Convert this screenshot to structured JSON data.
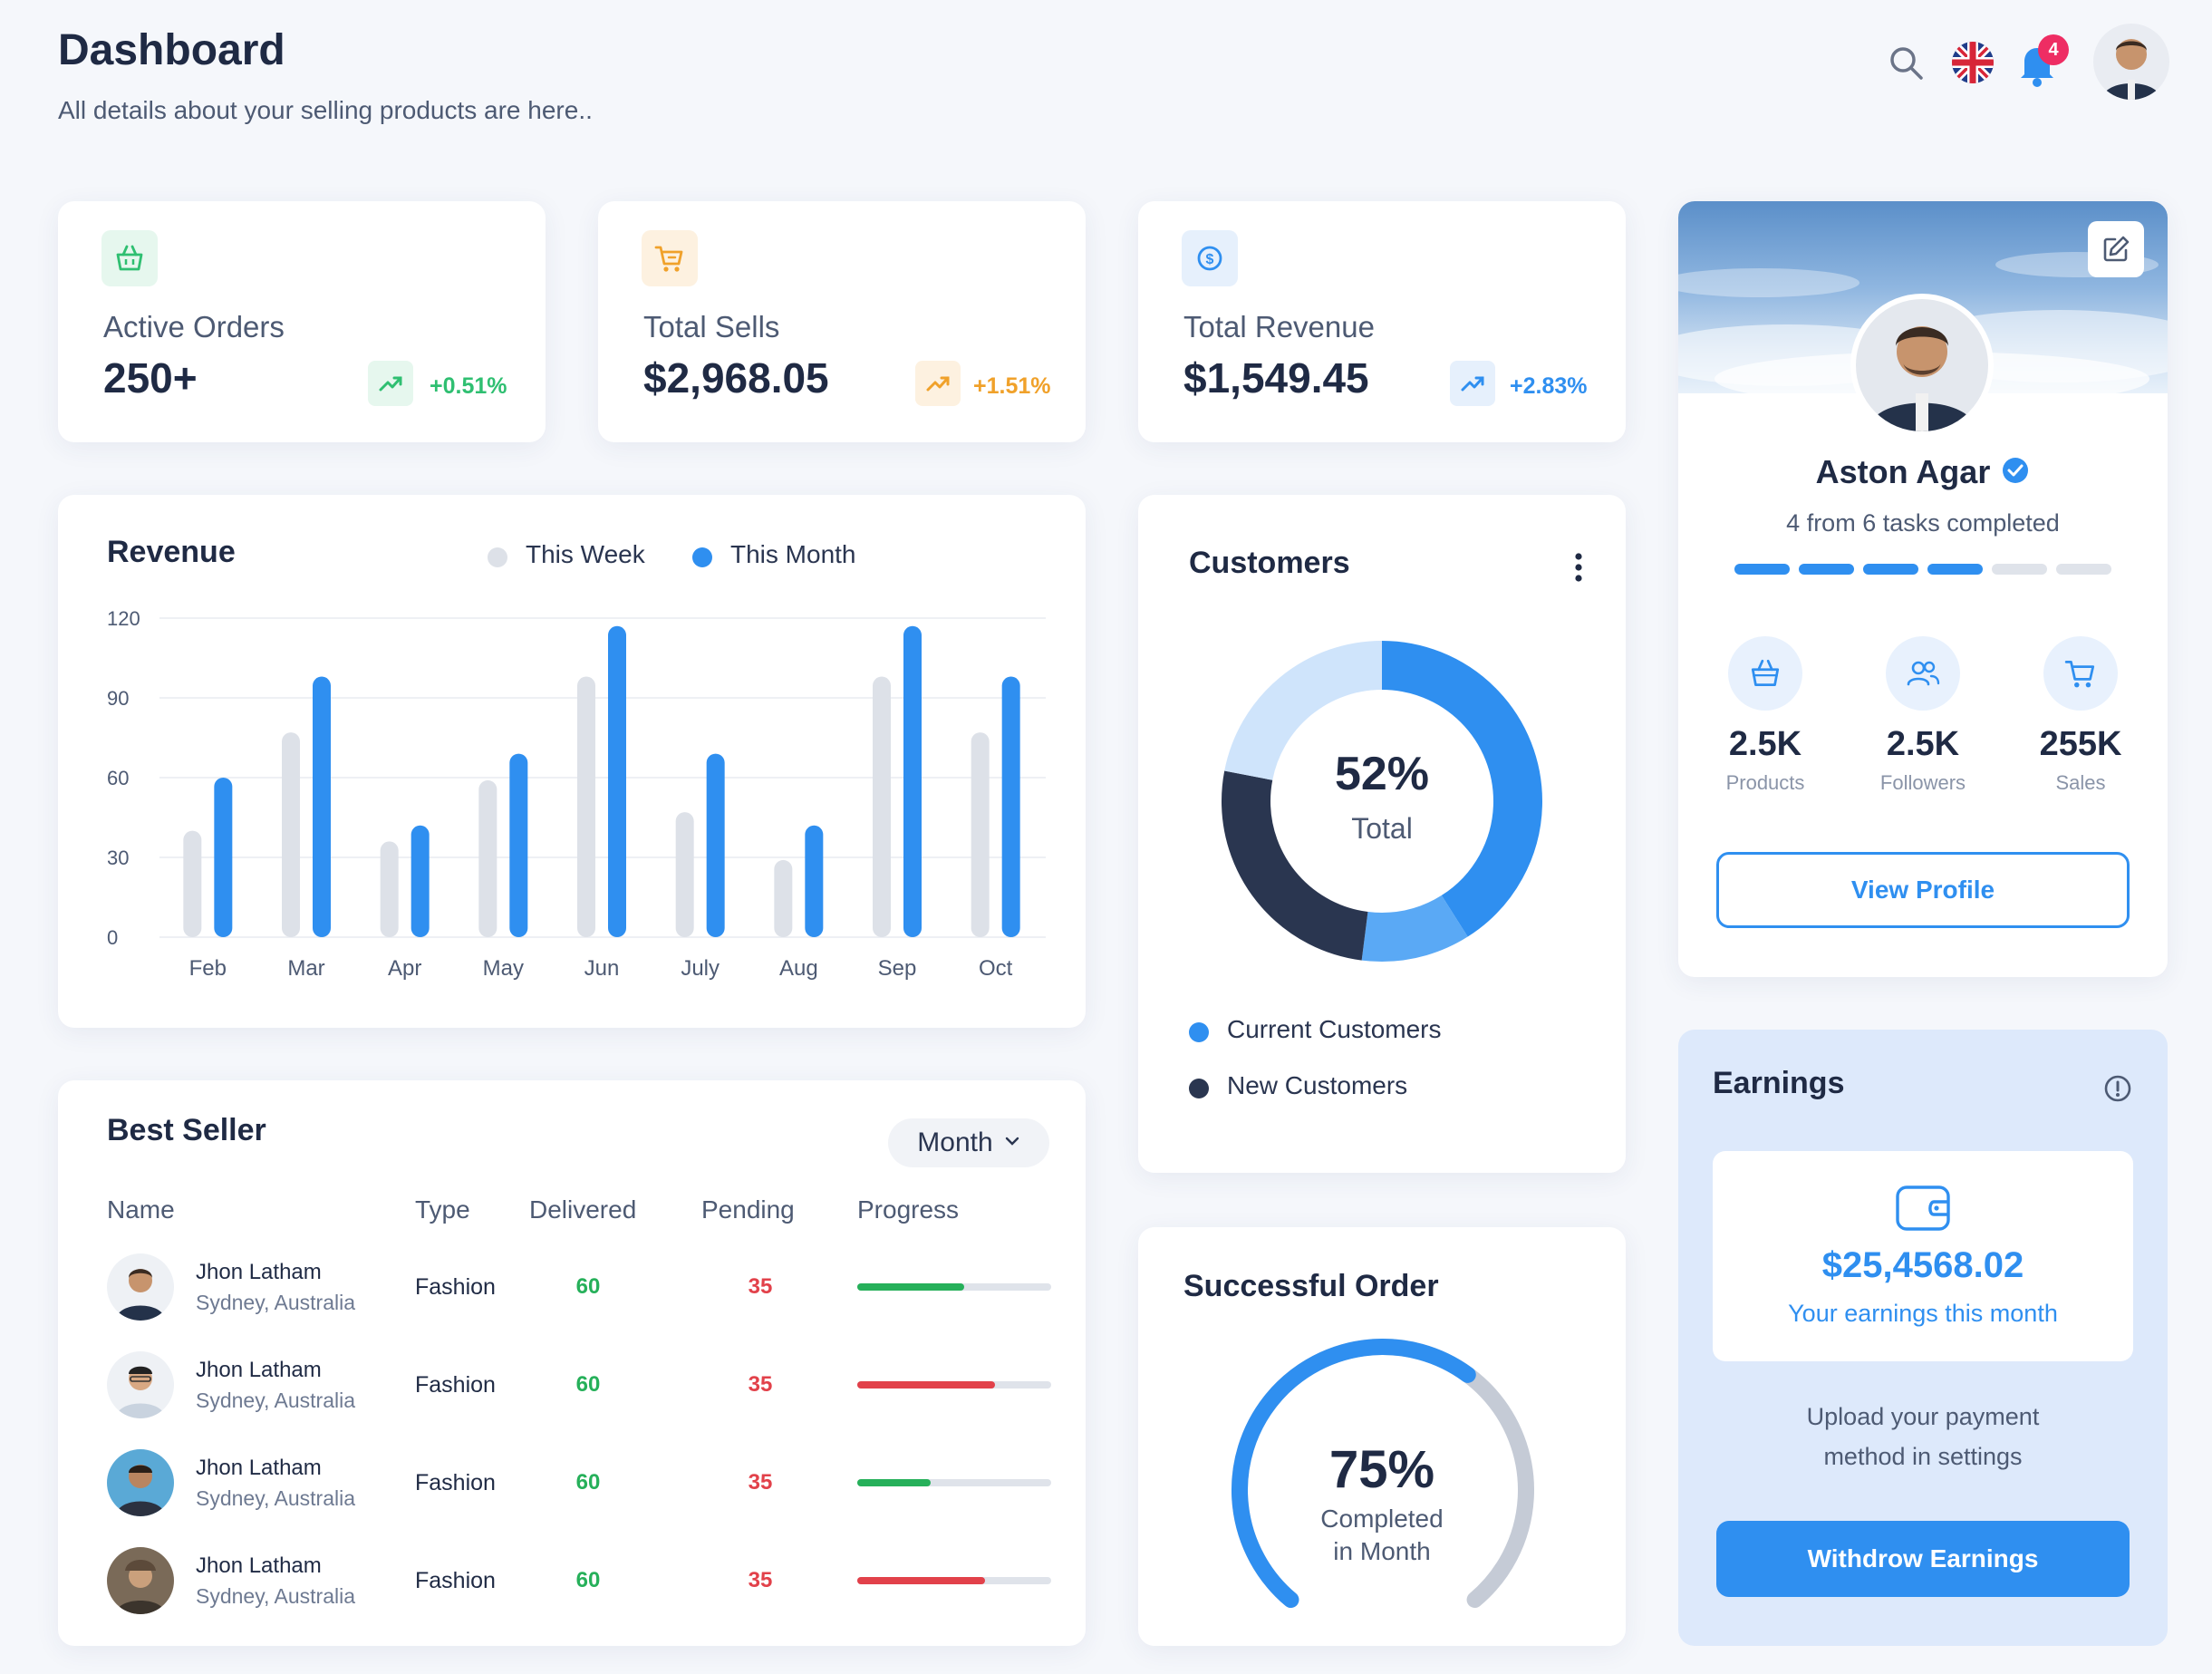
{
  "header": {
    "title": "Dashboard",
    "subtitle": "All details about your selling products are here..",
    "notification_count": "4"
  },
  "stats": [
    {
      "label": "Active Orders",
      "value": "250+",
      "change": "+0.51%",
      "accent": "#2fbf71",
      "tint": "#e6f7ee"
    },
    {
      "label": "Total Sells",
      "value": "$2,968.05",
      "change": "+1.51%",
      "accent": "#f0a12a",
      "tint": "#fdf1e0"
    },
    {
      "label": "Total Revenue",
      "value": "$1,549.45",
      "change": "+2.83%",
      "accent": "#2f8ff0",
      "tint": "#e6f0fc"
    }
  ],
  "revenue": {
    "title": "Revenue",
    "legend": [
      "This Week",
      "This Month"
    ],
    "chart_data": {
      "type": "bar",
      "categories": [
        "Feb",
        "Mar",
        "Apr",
        "May",
        "Jun",
        "July",
        "Aug",
        "Sep",
        "Oct"
      ],
      "series": [
        {
          "name": "This Week",
          "values": [
            40,
            77,
            36,
            59,
            98,
            47,
            29,
            98,
            77
          ],
          "color": "#dde1e8"
        },
        {
          "name": "This Month",
          "values": [
            60,
            98,
            42,
            69,
            117,
            69,
            42,
            117,
            98
          ],
          "color": "#2f8ff0"
        }
      ],
      "yticks": [
        0,
        30,
        60,
        90,
        120
      ],
      "ylim": [
        0,
        120
      ]
    }
  },
  "customers": {
    "title": "Customers",
    "percent": "52%",
    "total_label": "Total",
    "legend": [
      "Current Customers",
      "New Customers"
    ],
    "chart_data": {
      "type": "pie",
      "segments": [
        {
          "value": 41,
          "color": "#2f8ff0"
        },
        {
          "value": 11,
          "color": "#5aa9f5"
        },
        {
          "value": 26,
          "color": "#2a3650"
        },
        {
          "value": 22,
          "color": "#cfe4fb"
        }
      ]
    }
  },
  "best_seller": {
    "title": "Best Seller",
    "filter": "Month",
    "columns": [
      "Name",
      "Type",
      "Delivered",
      "Pending",
      "Progress"
    ],
    "rows": [
      {
        "name": "Jhon Latham",
        "location": "Sydney, Australia",
        "type": "Fashion",
        "delivered": "60",
        "pending": "35",
        "progress": 0.55,
        "color": "#26b05a"
      },
      {
        "name": "Jhon Latham",
        "location": "Sydney, Australia",
        "type": "Fashion",
        "delivered": "60",
        "pending": "35",
        "progress": 0.71,
        "color": "#e2414a"
      },
      {
        "name": "Jhon Latham",
        "location": "Sydney, Australia",
        "type": "Fashion",
        "delivered": "60",
        "pending": "35",
        "progress": 0.38,
        "color": "#26b05a"
      },
      {
        "name": "Jhon Latham",
        "location": "Sydney, Australia",
        "type": "Fashion",
        "delivered": "60",
        "pending": "35",
        "progress": 0.66,
        "color": "#e2414a"
      }
    ]
  },
  "successful_order": {
    "title": "Successful Order",
    "percent": "75%",
    "caption_line1": "Completed",
    "caption_line2": "in Month",
    "progress": 0.75
  },
  "profile": {
    "name": "Aston Agar",
    "tasks_text": "4 from 6 tasks completed",
    "tasks_done": 4,
    "tasks_total": 6,
    "stats": [
      {
        "value": "2.5K",
        "label": "Products",
        "icon": "basket-icon"
      },
      {
        "value": "2.5K",
        "label": "Followers",
        "icon": "users-icon"
      },
      {
        "value": "255K",
        "label": "Sales",
        "icon": "cart-icon"
      }
    ],
    "button": "View Profile"
  },
  "earnings": {
    "title": "Earnings",
    "amount": "$25,4568.02",
    "caption": "Your earnings this month",
    "note_line1": "Upload your payment",
    "note_line2": "method in settings",
    "button": "Withdrow Earnings"
  }
}
